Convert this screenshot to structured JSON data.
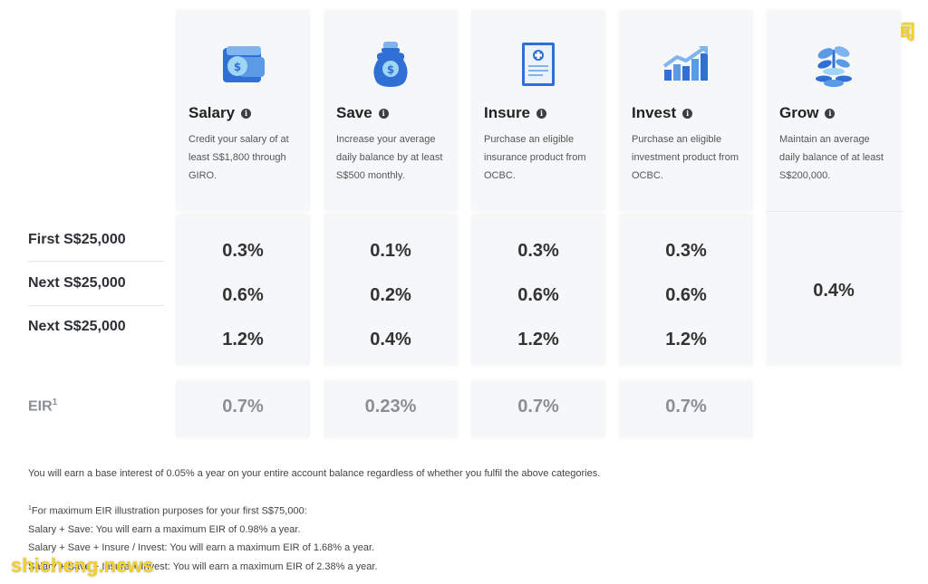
{
  "watermarks": {
    "top_right": "狮城新闻",
    "bottom_left": "shicheng.news"
  },
  "categories": [
    {
      "title": "Salary",
      "icon": "wallet-icon",
      "desc": "Credit your salary of at least S$1,800 through GIRO.",
      "rates": [
        "0.3%",
        "0.6%",
        "1.2%"
      ],
      "eir": "0.7%"
    },
    {
      "title": "Save",
      "icon": "money-bag-icon",
      "desc": "Increase your average daily balance by at least S$500 monthly.",
      "rates": [
        "0.1%",
        "0.2%",
        "0.4%"
      ],
      "eir": "0.23%"
    },
    {
      "title": "Insure",
      "icon": "insurance-document-icon",
      "desc": "Purchase an eligible insurance product from OCBC.",
      "rates": [
        "0.3%",
        "0.6%",
        "1.2%"
      ],
      "eir": "0.7%"
    },
    {
      "title": "Invest",
      "icon": "investment-chart-icon",
      "desc": "Purchase an eligible investment product from OCBC.",
      "rates": [
        "0.3%",
        "0.6%",
        "1.2%"
      ],
      "eir": "0.7%"
    },
    {
      "title": "Grow",
      "icon": "plant-coins-icon",
      "desc": "Maintain an average daily balance of at least S$200,000.",
      "rate": "0.4%"
    }
  ],
  "row_labels": [
    "First S$25,000",
    "Next S$25,000",
    "Next S$25,000"
  ],
  "eir_label": "EIR",
  "eir_sup": "1",
  "notes": {
    "base": "You will earn a base interest of 0.05% a year on your entire account balance regardless of whether you fulfil the above categories.",
    "footnote_sup": "1",
    "footnote_intro": "For maximum EIR illustration purposes for your first S$75,000:",
    "line1": "Salary + Save: You will earn a maximum EIR of 0.98% a year.",
    "line2": "Salary + Save + Insure / Invest: You will earn a maximum EIR of 1.68% a year.",
    "line3": "Salary + Save + Insure + Invest: You will earn a maximum EIR of 2.38% a year."
  },
  "colors": {
    "card_bg": "#f6f7f9",
    "icon_blue": "#2f6fd6",
    "icon_light": "#8fc6f0"
  }
}
